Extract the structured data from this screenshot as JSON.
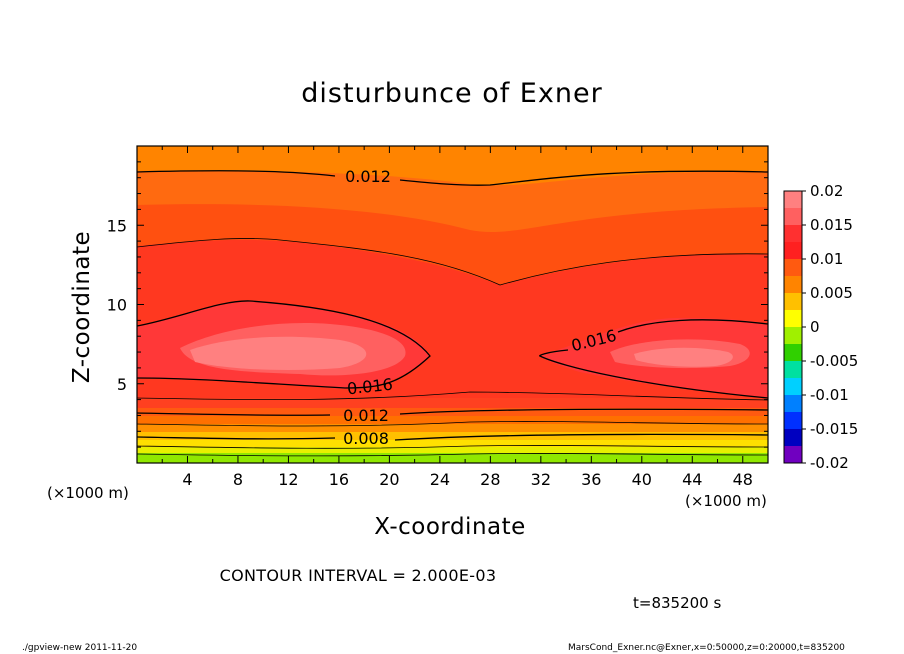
{
  "chart_data": {
    "type": "heatmap",
    "title": "disturbunce of Exner",
    "xlabel": "X-coordinate",
    "ylabel": "Z-coordinate",
    "x_unit": "(×1000 m)",
    "y_unit": "(×1000 m)",
    "xlim": [
      0,
      50
    ],
    "ylim": [
      0,
      20
    ],
    "x_ticks": [
      4,
      8,
      12,
      16,
      20,
      24,
      28,
      32,
      36,
      40,
      44,
      48
    ],
    "y_ticks": [
      5,
      10,
      15
    ],
    "colorbar": {
      "ticks": [
        "0.02",
        "0.015",
        "0.01",
        "0.005",
        "0",
        "-0.005",
        "-0.01",
        "-0.015",
        "-0.02"
      ],
      "levels": [
        0.02,
        0.0175,
        0.015,
        0.0125,
        0.01,
        0.0075,
        0.005,
        0.0025,
        0,
        -0.0025,
        -0.005,
        -0.0075,
        -0.01,
        -0.0125,
        -0.015,
        -0.0175
      ],
      "colors": [
        "#ff8080",
        "#ff6060",
        "#ff3030",
        "#ff2020",
        "#ff5a10",
        "#ff8400",
        "#ffc000",
        "#ffff00",
        "#a0f000",
        "#30d000",
        "#00e0a0",
        "#00d0ff",
        "#0080ff",
        "#0030ff",
        "#0000c0",
        "#7000c0"
      ]
    },
    "contour_labels": [
      "0.012",
      "0.016",
      "0.016",
      "0.012",
      "0.008"
    ],
    "contour_interval": "CONTOUR INTERVAL = 2.000E-03",
    "time": "t=835200 s",
    "approx_field_profile": {
      "z": [
        0,
        2,
        3.5,
        5,
        7,
        9,
        12,
        15,
        18,
        20
      ],
      "value": [
        0.003,
        0.008,
        0.012,
        0.016,
        0.019,
        0.017,
        0.015,
        0.013,
        0.012,
        0.011
      ]
    }
  },
  "footer": {
    "left": "./gpview-new   2011-11-20",
    "right": "MarsCond_Exner.nc@Exner,x=0:50000,z=0:20000,t=835200"
  }
}
